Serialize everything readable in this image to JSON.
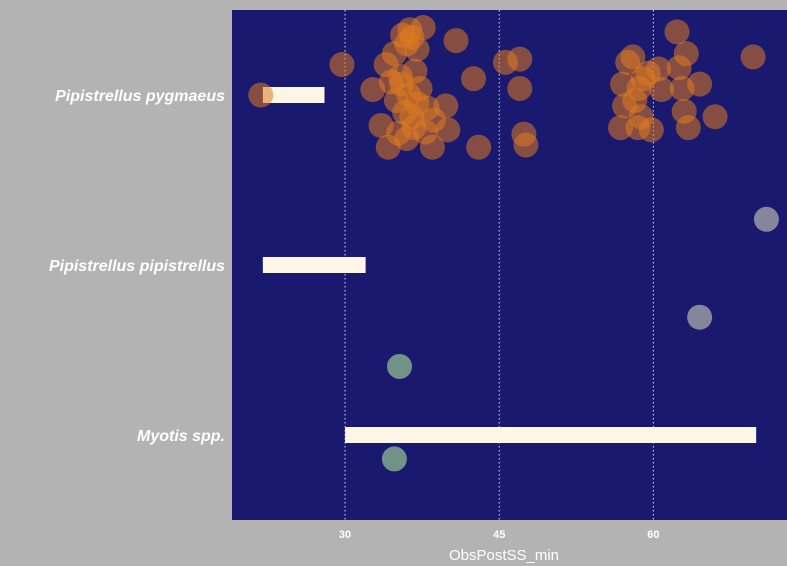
{
  "chart_data": {
    "type": "scatter",
    "xlabel": "ObsPostSS_min",
    "ylabel": "",
    "xlim": [
      19,
      73
    ],
    "x_ticks": [
      30,
      45,
      60
    ],
    "x_tick_labels": [
      "30",
      "45",
      "60"
    ],
    "grid": true,
    "legend": "none",
    "categories": [
      "Pipistrellus pygmaeus",
      "Pipistrellus pipistrellus",
      "Myotis spp."
    ],
    "colors": {
      "outer_background": "#b3b3b3",
      "panel_background": "#191970",
      "gridline": "#ffffff",
      "range_bar": "#fdf5e6",
      "text": "#ffffff",
      "point_pygmaeus": "#e07a1f",
      "point_pipistrellus": "#a9a9a9",
      "point_myotis": "#8fbc8f"
    },
    "bars": [
      {
        "category": "Pipistrellus pygmaeus",
        "start": 22,
        "end": 28
      },
      {
        "category": "Pipistrellus pipistrellus",
        "start": 22,
        "end": 32
      },
      {
        "category": "Myotis spp.",
        "start": 30,
        "end": 70
      }
    ],
    "series": [
      {
        "category": "Pipistrellus pygmaeus",
        "point_color": "#e07a1f",
        "points": [
          [
            21.8,
            0.0
          ],
          [
            29.7,
            0.28
          ],
          [
            32.7,
            0.05
          ],
          [
            33.5,
            -0.28
          ],
          [
            34.0,
            0.28
          ],
          [
            34.2,
            -0.48
          ],
          [
            34.5,
            0.12
          ],
          [
            34.8,
            0.38
          ],
          [
            35.0,
            -0.05
          ],
          [
            35.2,
            -0.35
          ],
          [
            35.4,
            0.17
          ],
          [
            35.5,
            0.1
          ],
          [
            35.6,
            0.55
          ],
          [
            35.8,
            -0.16
          ],
          [
            36.0,
            0.47
          ],
          [
            36.0,
            -0.4
          ],
          [
            36.2,
            0.0
          ],
          [
            36.3,
            0.6
          ],
          [
            36.5,
            -0.2
          ],
          [
            36.5,
            0.53
          ],
          [
            36.7,
            -0.3
          ],
          [
            36.8,
            0.22
          ],
          [
            37.0,
            -0.08
          ],
          [
            37.0,
            0.42
          ],
          [
            37.3,
            0.06
          ],
          [
            37.6,
            0.62
          ],
          [
            37.8,
            -0.34
          ],
          [
            38.0,
            -0.12
          ],
          [
            38.5,
            -0.48
          ],
          [
            38.6,
            -0.23
          ],
          [
            39.8,
            -0.1
          ],
          [
            40.0,
            -0.32
          ],
          [
            40.8,
            0.5
          ],
          [
            42.5,
            0.15
          ],
          [
            43.0,
            -0.48
          ],
          [
            45.6,
            0.3
          ],
          [
            47.0,
            0.33
          ],
          [
            47.0,
            0.06
          ],
          [
            47.4,
            -0.36
          ],
          [
            47.6,
            -0.46
          ],
          [
            56.8,
            -0.3
          ],
          [
            57.0,
            0.1
          ],
          [
            57.2,
            -0.1
          ],
          [
            57.5,
            0.3
          ],
          [
            58.0,
            0.35
          ],
          [
            58.2,
            -0.05
          ],
          [
            58.5,
            -0.3
          ],
          [
            58.6,
            0.06
          ],
          [
            58.8,
            -0.2
          ],
          [
            59.0,
            0.15
          ],
          [
            59.5,
            0.2
          ],
          [
            59.8,
            -0.32
          ],
          [
            60.5,
            0.24
          ],
          [
            60.8,
            0.05
          ],
          [
            62.3,
            0.58
          ],
          [
            62.5,
            0.25
          ],
          [
            62.8,
            0.06
          ],
          [
            63.0,
            -0.15
          ],
          [
            63.2,
            0.38
          ],
          [
            63.4,
            -0.3
          ],
          [
            64.5,
            0.1
          ],
          [
            66.0,
            -0.2
          ],
          [
            69.7,
            0.35
          ]
        ]
      },
      {
        "category": "Pipistrellus pipistrellus",
        "point_color": "#a9a9a9",
        "points": [
          [
            71.0,
            0.42
          ],
          [
            64.5,
            -0.48
          ]
        ]
      },
      {
        "category": "Myotis spp.",
        "point_color": "#8fbc8f",
        "points": [
          [
            35.3,
            0.63
          ],
          [
            34.8,
            -0.22
          ]
        ]
      }
    ]
  }
}
